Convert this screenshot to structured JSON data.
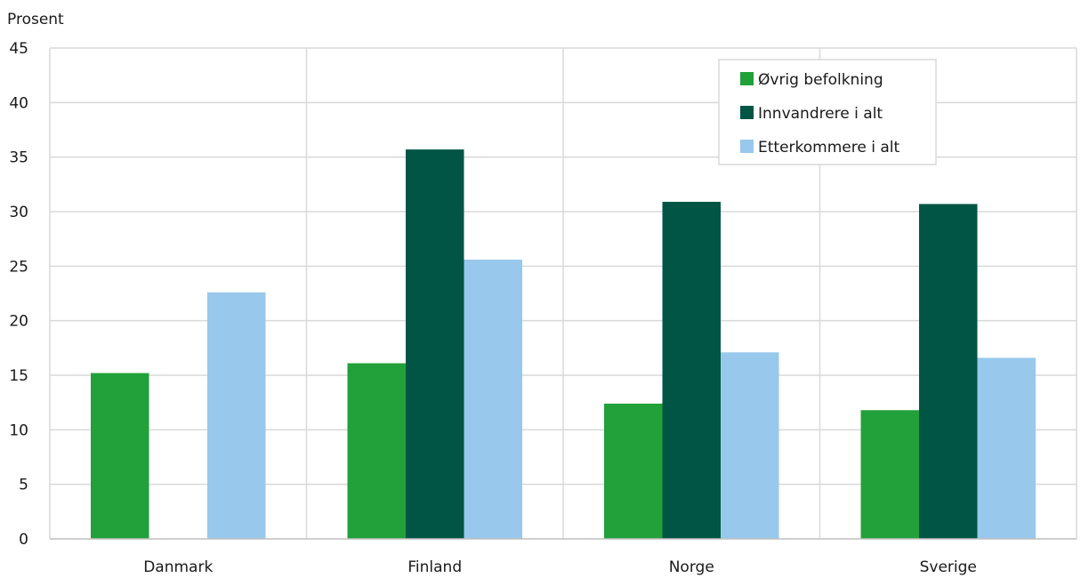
{
  "chart_data": {
    "type": "bar",
    "ylabel": "Prosent",
    "ylim": [
      0,
      45
    ],
    "yticks": [
      0,
      5,
      10,
      15,
      20,
      25,
      30,
      35,
      40,
      45
    ],
    "grid": true,
    "legend_position": "top-right",
    "categories": [
      "Danmark",
      "Finland",
      "Norge",
      "Sverige"
    ],
    "series": [
      {
        "name": "Øvrig befolkning",
        "color": "#22a03a",
        "values": [
          15.2,
          16.1,
          12.4,
          11.8
        ]
      },
      {
        "name": "Innvandrere i alt",
        "color": "#005544",
        "values": [
          null,
          35.7,
          30.9,
          30.7
        ]
      },
      {
        "name": "Etterkommere i alt",
        "color": "#98c8ec",
        "values": [
          22.6,
          25.6,
          17.1,
          16.6
        ]
      }
    ]
  }
}
